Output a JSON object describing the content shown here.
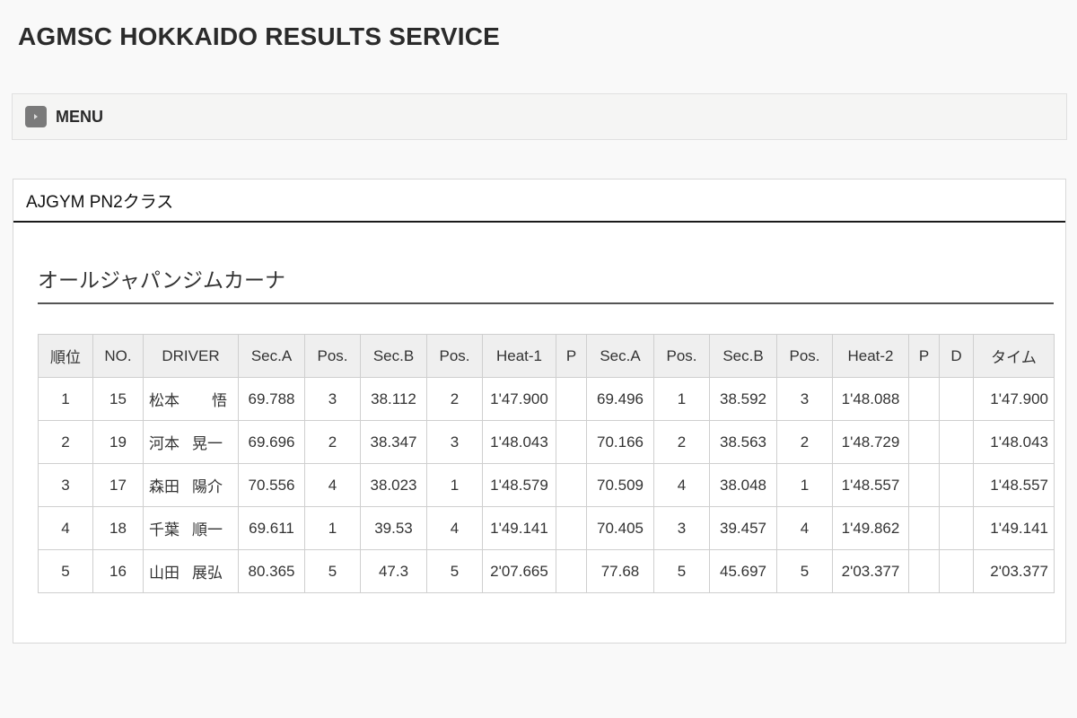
{
  "site": {
    "title": "AGMSC HOKKAIDO RESULTS SERVICE"
  },
  "menu": {
    "label": "MENU"
  },
  "panel": {
    "class_title": "AJGYM PN2クラス",
    "event_title": "オールジャパンジムカーナ"
  },
  "results": {
    "headers": [
      "順位",
      "NO.",
      "DRIVER",
      "Sec.A",
      "Pos.",
      "Sec.B",
      "Pos.",
      "Heat-1",
      "P",
      "Sec.A",
      "Pos.",
      "Sec.B",
      "Pos.",
      "Heat-2",
      "P",
      "D",
      "タイム"
    ],
    "rows": [
      {
        "rank": "1",
        "no": "15",
        "driver_last": "松本",
        "driver_first": "悟",
        "secA1": "69.788",
        "pos1": "3",
        "secB1": "38.112",
        "posB1": "2",
        "heat1": "1'47.900",
        "p1": "",
        "secA2": "69.496",
        "pos2": "1",
        "secB2": "38.592",
        "posB2": "3",
        "heat2": "1'48.088",
        "p2": "",
        "d": "",
        "time": "1'47.900"
      },
      {
        "rank": "2",
        "no": "19",
        "driver_last": "河本",
        "driver_first": "晃一",
        "secA1": "69.696",
        "pos1": "2",
        "secB1": "38.347",
        "posB1": "3",
        "heat1": "1'48.043",
        "p1": "",
        "secA2": "70.166",
        "pos2": "2",
        "secB2": "38.563",
        "posB2": "2",
        "heat2": "1'48.729",
        "p2": "",
        "d": "",
        "time": "1'48.043"
      },
      {
        "rank": "3",
        "no": "17",
        "driver_last": "森田",
        "driver_first": "陽介",
        "secA1": "70.556",
        "pos1": "4",
        "secB1": "38.023",
        "posB1": "1",
        "heat1": "1'48.579",
        "p1": "",
        "secA2": "70.509",
        "pos2": "4",
        "secB2": "38.048",
        "posB2": "1",
        "heat2": "1'48.557",
        "p2": "",
        "d": "",
        "time": "1'48.557"
      },
      {
        "rank": "4",
        "no": "18",
        "driver_last": "千葉",
        "driver_first": "順一",
        "secA1": "69.611",
        "pos1": "1",
        "secB1": "39.53",
        "posB1": "4",
        "heat1": "1'49.141",
        "p1": "",
        "secA2": "70.405",
        "pos2": "3",
        "secB2": "39.457",
        "posB2": "4",
        "heat2": "1'49.862",
        "p2": "",
        "d": "",
        "time": "1'49.141"
      },
      {
        "rank": "5",
        "no": "16",
        "driver_last": "山田",
        "driver_first": "展弘",
        "secA1": "80.365",
        "pos1": "5",
        "secB1": "47.3",
        "posB1": "5",
        "heat1": "2'07.665",
        "p1": "",
        "secA2": "77.68",
        "pos2": "5",
        "secB2": "45.697",
        "posB2": "5",
        "heat2": "2'03.377",
        "p2": "",
        "d": "",
        "time": "2'03.377"
      }
    ]
  }
}
